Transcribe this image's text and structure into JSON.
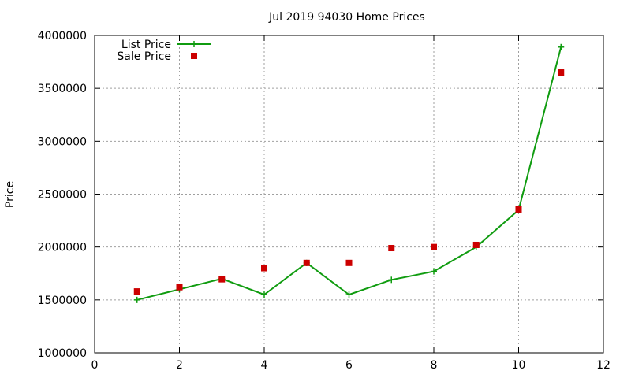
{
  "chart_data": {
    "type": "line",
    "title": "Jul 2019 94030 Home Prices",
    "xlabel": "",
    "ylabel": "Price",
    "xlim": [
      0,
      12
    ],
    "ylim": [
      1000000,
      4000000
    ],
    "xticks": [
      0,
      2,
      4,
      6,
      8,
      10,
      12
    ],
    "yticks": [
      1000000,
      1500000,
      2000000,
      2500000,
      3000000,
      3500000,
      4000000
    ],
    "grid": true,
    "legend_position": "top-left",
    "series": [
      {
        "name": "List Price",
        "style": "line+cross",
        "color": "#109c10",
        "x": [
          1,
          2,
          3,
          4,
          5,
          6,
          7,
          8,
          9,
          10,
          11
        ],
        "values": [
          1500000,
          1600000,
          1700000,
          1550000,
          1850000,
          1550000,
          1690000,
          1770000,
          2000000,
          2350000,
          3890000
        ]
      },
      {
        "name": "Sale Price",
        "style": "square-points",
        "color": "#cc0000",
        "x": [
          1,
          2,
          3,
          4,
          5,
          6,
          7,
          8,
          9,
          10,
          11
        ],
        "values": [
          1580000,
          1620000,
          1695000,
          1800000,
          1850000,
          1850000,
          1990000,
          2000000,
          2020000,
          2355000,
          3650000
        ]
      }
    ]
  }
}
